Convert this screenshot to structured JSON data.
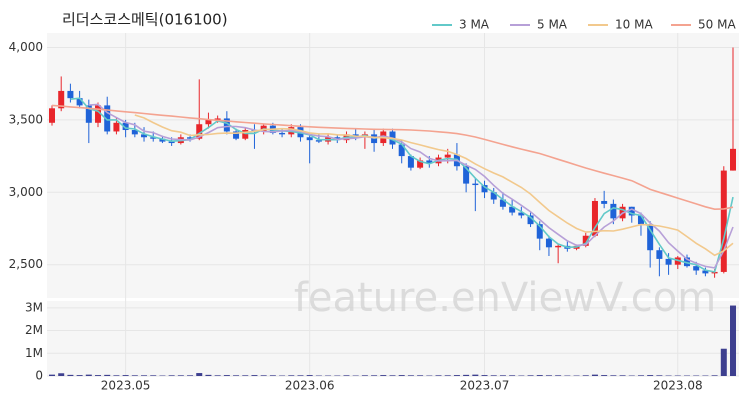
{
  "chart_data": {
    "type": "candlestick",
    "title": "리더스코스메틱(016100)",
    "watermark": "feature.enViewV.com",
    "up_color": "#e8262b",
    "down_color": "#1f63d8",
    "volume_color": "#3d3f8f",
    "categories": [
      null,
      null,
      null,
      null,
      null,
      null,
      null,
      null,
      "2023.05",
      null,
      null,
      null,
      null,
      null,
      null,
      null,
      null,
      null,
      null,
      null,
      null,
      null,
      null,
      null,
      null,
      null,
      null,
      null,
      "2023.06",
      null,
      null,
      null,
      null,
      null,
      null,
      null,
      null,
      null,
      null,
      null,
      null,
      null,
      null,
      null,
      null,
      null,
      null,
      "2023.07",
      null,
      null,
      null,
      null,
      null,
      null,
      null,
      null,
      null,
      null,
      null,
      null,
      null,
      null,
      null,
      null,
      null,
      null,
      null,
      null,
      "2023.08",
      null,
      null,
      null,
      null,
      null,
      null
    ],
    "open": [
      3480,
      3580,
      3700,
      3650,
      3600,
      3480,
      3600,
      3420,
      3480,
      3430,
      3400,
      3380,
      3370,
      3350,
      3340,
      3380,
      3370,
      3470,
      3500,
      3510,
      3420,
      3370,
      3430,
      3420,
      3460,
      3410,
      3400,
      3450,
      3380,
      3360,
      3350,
      3380,
      3360,
      3400,
      3380,
      3400,
      3340,
      3420,
      3330,
      3250,
      3170,
      3220,
      3200,
      3240,
      3260,
      3180,
      3060,
      3050,
      3000,
      2950,
      2900,
      2860,
      2840,
      2780,
      2680,
      2620,
      2630,
      2610,
      2630,
      2700,
      2940,
      2920,
      2820,
      2900,
      2840,
      2780,
      2600,
      2540,
      2500,
      2550,
      2490,
      2460,
      2440,
      2450,
      3150
    ],
    "high": [
      3600,
      3800,
      3750,
      3700,
      3640,
      3620,
      3660,
      3520,
      3500,
      3480,
      3450,
      3420,
      3390,
      3380,
      3400,
      3400,
      3780,
      3550,
      3530,
      3560,
      3440,
      3450,
      3470,
      3470,
      3480,
      3440,
      3470,
      3470,
      3400,
      3400,
      3400,
      3400,
      3420,
      3440,
      3420,
      3440,
      3440,
      3440,
      3360,
      3260,
      3240,
      3250,
      3260,
      3300,
      3340,
      3200,
      3100,
      3080,
      3030,
      3000,
      2950,
      2900,
      2860,
      2800,
      2700,
      2640,
      2660,
      2640,
      2720,
      2960,
      3010,
      2950,
      2920,
      2900,
      2860,
      2800,
      2620,
      2580,
      2560,
      2570,
      2520,
      2480,
      2470,
      3180,
      4000
    ],
    "low": [
      3460,
      3560,
      3620,
      3580,
      3340,
      3450,
      3400,
      3400,
      3380,
      3380,
      3350,
      3350,
      3340,
      3320,
      3330,
      3350,
      3360,
      3440,
      3480,
      3400,
      3360,
      3360,
      3300,
      3400,
      3400,
      3380,
      3380,
      3350,
      3200,
      3340,
      3330,
      3340,
      3340,
      3360,
      3300,
      3280,
      3320,
      3300,
      3200,
      3150,
      3160,
      3170,
      3180,
      3200,
      3150,
      3000,
      2870,
      2960,
      2920,
      2880,
      2840,
      2820,
      2760,
      2600,
      2560,
      2510,
      2590,
      2600,
      2620,
      2690,
      2890,
      2780,
      2800,
      2790,
      2700,
      2480,
      2420,
      2430,
      2470,
      2480,
      2430,
      2420,
      2410,
      2440,
      3150
    ],
    "close": [
      3580,
      3700,
      3650,
      3600,
      3480,
      3600,
      3420,
      3480,
      3430,
      3400,
      3380,
      3370,
      3350,
      3340,
      3380,
      3370,
      3470,
      3500,
      3510,
      3420,
      3370,
      3430,
      3420,
      3460,
      3410,
      3400,
      3450,
      3380,
      3360,
      3350,
      3380,
      3360,
      3400,
      3380,
      3400,
      3340,
      3420,
      3330,
      3250,
      3170,
      3220,
      3200,
      3240,
      3260,
      3180,
      3060,
      3050,
      3000,
      2950,
      2900,
      2860,
      2840,
      2780,
      2680,
      2620,
      2630,
      2610,
      2630,
      2700,
      2940,
      2920,
      2820,
      2900,
      2840,
      2780,
      2600,
      2540,
      2500,
      2550,
      2490,
      2460,
      2440,
      2450,
      3150,
      3300
    ],
    "volume": [
      60000,
      120000,
      50000,
      40000,
      60000,
      40000,
      50000,
      30000,
      40000,
      30000,
      30000,
      30000,
      20000,
      30000,
      30000,
      30000,
      130000,
      50000,
      30000,
      40000,
      30000,
      30000,
      40000,
      30000,
      30000,
      20000,
      30000,
      30000,
      40000,
      20000,
      20000,
      20000,
      30000,
      20000,
      30000,
      30000,
      40000,
      30000,
      40000,
      30000,
      30000,
      20000,
      30000,
      30000,
      40000,
      50000,
      60000,
      40000,
      30000,
      30000,
      30000,
      20000,
      30000,
      40000,
      30000,
      30000,
      20000,
      20000,
      30000,
      60000,
      40000,
      30000,
      30000,
      20000,
      30000,
      40000,
      30000,
      20000,
      20000,
      20000,
      20000,
      20000,
      30000,
      1200000,
      3100000
    ],
    "series": [
      {
        "name": "3 MA",
        "color": "#62c9c9",
        "values": [
          null,
          null,
          3643,
          3650,
          3577,
          3560,
          3500,
          3500,
          3443,
          3437,
          3403,
          3383,
          3367,
          3353,
          3357,
          3363,
          3407,
          3447,
          3493,
          3477,
          3433,
          3407,
          3407,
          3437,
          3430,
          3423,
          3420,
          3410,
          3397,
          3363,
          3363,
          3363,
          3380,
          3380,
          3393,
          3373,
          3387,
          3363,
          3333,
          3250,
          3213,
          3197,
          3220,
          3233,
          3227,
          3167,
          3097,
          3037,
          3000,
          2950,
          2903,
          2867,
          2827,
          2767,
          2693,
          2643,
          2620,
          2623,
          2647,
          2757,
          2853,
          2893,
          2880,
          2853,
          2840,
          2740,
          2640,
          2547,
          2530,
          2513,
          2500,
          2463,
          2450,
          2680,
          2967
        ]
      },
      {
        "name": "5 MA",
        "color": "#b7a0d8",
        "values": [
          null,
          null,
          null,
          null,
          3602,
          3606,
          3550,
          3516,
          3482,
          3466,
          3422,
          3412,
          3386,
          3368,
          3364,
          3362,
          3382,
          3412,
          3446,
          3454,
          3454,
          3446,
          3430,
          3420,
          3418,
          3424,
          3428,
          3420,
          3400,
          3388,
          3384,
          3366,
          3370,
          3374,
          3384,
          3376,
          3388,
          3374,
          3348,
          3302,
          3278,
          3234,
          3216,
          3218,
          3220,
          3188,
          3158,
          3110,
          3048,
          2992,
          2952,
          2910,
          2866,
          2812,
          2756,
          2710,
          2664,
          2634,
          2638,
          2702,
          2760,
          2802,
          2856,
          2884,
          2852,
          2788,
          2732,
          2652,
          2594,
          2538,
          2510,
          2488,
          2478,
          2598,
          2760
        ]
      },
      {
        "name": "10 MA",
        "color": "#f2c98d",
        "values": [
          null,
          null,
          null,
          null,
          null,
          null,
          null,
          null,
          null,
          3534,
          3514,
          3481,
          3451,
          3425,
          3415,
          3392,
          3397,
          3399,
          3407,
          3409,
          3408,
          3414,
          3421,
          3433,
          3436,
          3439,
          3437,
          3425,
          3410,
          3403,
          3404,
          3397,
          3395,
          3387,
          3386,
          3380,
          3377,
          3372,
          3361,
          3343,
          3327,
          3311,
          3295,
          3283,
          3261,
          3233,
          3196,
          3163,
          3133,
          3106,
          3070,
          3034,
          2988,
          2930,
          2874,
          2831,
          2787,
          2750,
          2725,
          2729,
          2735,
          2733,
          2745,
          2761,
          2777,
          2774,
          2767,
          2754,
          2739,
          2694,
          2648,
          2610,
          2565,
          2596,
          2648
        ]
      },
      {
        "name": "50 MA",
        "color": "#f4a390",
        "values": [
          3600,
          3595,
          3590,
          3585,
          3580,
          3574,
          3568,
          3562,
          3556,
          3550,
          3544,
          3538,
          3532,
          3526,
          3520,
          3514,
          3508,
          3502,
          3497,
          3492,
          3487,
          3482,
          3477,
          3472,
          3468,
          3464,
          3460,
          3456,
          3452,
          3449,
          3446,
          3443,
          3441,
          3439,
          3437,
          3435,
          3434,
          3433,
          3432,
          3430,
          3427,
          3423,
          3418,
          3412,
          3405,
          3395,
          3382,
          3365,
          3348,
          3331,
          3314,
          3298,
          3283,
          3268,
          3248,
          3228,
          3208,
          3188,
          3168,
          3150,
          3132,
          3115,
          3098,
          3080,
          3050,
          3020,
          3000,
          2980,
          2960,
          2940,
          2920,
          2900,
          2883,
          2885,
          2897
        ]
      }
    ],
    "ylim": [
      2270,
      4100
    ],
    "yticks": [
      {
        "value": 2500,
        "label": "2,500"
      },
      {
        "value": 3000,
        "label": "3,000"
      },
      {
        "value": 3500,
        "label": "3,500"
      },
      {
        "value": 4000,
        "label": "4,000"
      }
    ],
    "volume_lim": [
      0,
      3300000
    ],
    "volume_ticks": [
      0,
      {
        "value": 1000000,
        "label": "1M"
      },
      {
        "value": 2000000,
        "label": "2M"
      },
      {
        "value": 3000000,
        "label": "3M"
      }
    ],
    "grid": true
  }
}
